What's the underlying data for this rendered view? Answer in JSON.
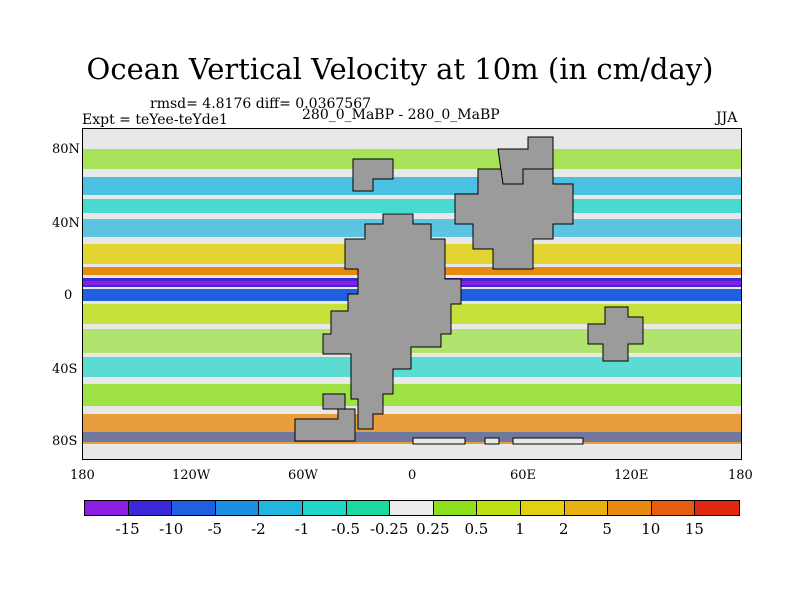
{
  "title": "Ocean Vertical Velocity at 10m (in cm/day)",
  "stats": "rmsd= 4.8176 diff= 0.0367567",
  "experiment": "Expt = teYee-teYde1",
  "comparison": "280_0_MaBP - 280_0_MaBP",
  "season": "JJA",
  "lat_ticks": [
    "80N",
    "40N",
    "0",
    "40S",
    "80S"
  ],
  "lon_ticks": [
    "180",
    "120W",
    "60W",
    "0",
    "60E",
    "120E",
    "180"
  ],
  "colorbar": {
    "labels": [
      "-15",
      "-10",
      "-5",
      "-2",
      "-1",
      "-0.5",
      "-0.25",
      "0.25",
      "0.5",
      "1",
      "2",
      "5",
      "10",
      "15"
    ],
    "colors": [
      "#8a1fe0",
      "#3b28d8",
      "#1f5fe0",
      "#1e8ee0",
      "#22b5e0",
      "#20d6c8",
      "#1ad8a0",
      "#ececec",
      "#8ce01c",
      "#bce010",
      "#e0d010",
      "#e8b010",
      "#e88a10",
      "#e85c10",
      "#e02810"
    ]
  },
  "colors": {
    "land": "#9b9b9b",
    "background": "#e8e8e8"
  }
}
